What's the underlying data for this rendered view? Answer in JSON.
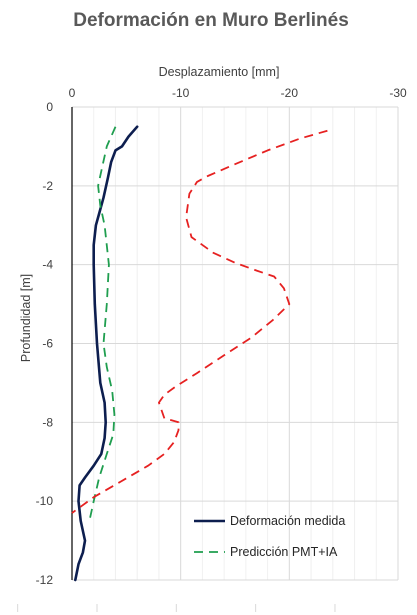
{
  "chart_data": {
    "type": "line",
    "title": "Deformación en Muro Berlinés",
    "xlabel": "Desplazamiento [mm]",
    "ylabel": "Profundidad [m]",
    "xlim": [
      0,
      -30
    ],
    "ylim": [
      0,
      -12
    ],
    "x_axis_position": "top",
    "x_ticks": [
      0,
      -10,
      -20,
      -30
    ],
    "x_tick_labels": [
      "0",
      "-10",
      "-20",
      "-30"
    ],
    "y_ticks": [
      0,
      -2,
      -4,
      -6,
      -8,
      -10,
      -12
    ],
    "y_tick_labels": [
      "0",
      "-2",
      "-4",
      "-6",
      "-8",
      "-10",
      "-12"
    ],
    "grid": true,
    "legend_position": "bottom-right",
    "series": [
      {
        "name": "Deformación medida",
        "color": "#0d1e4f",
        "style": "solid",
        "x": [
          -6,
          -5.2,
          -4.6,
          -4.0,
          -3.6,
          -3.3,
          -2.9,
          -2.5,
          -2.2,
          -2.0,
          -2.0,
          -2.1,
          -2.3,
          -2.6,
          -3.0,
          -3.1,
          -3.0,
          -2.7,
          -2.0,
          -1.2,
          -0.7,
          -0.6,
          -0.8,
          -1.2,
          -1.0,
          -0.6,
          -0.3
        ],
        "y": [
          -0.5,
          -0.75,
          -1.0,
          -1.1,
          -1.4,
          -1.8,
          -2.3,
          -2.7,
          -3.0,
          -3.5,
          -4.0,
          -5.0,
          -6.0,
          -7.0,
          -7.5,
          -8.0,
          -8.4,
          -8.8,
          -9.1,
          -9.4,
          -9.6,
          -10.0,
          -10.5,
          -11.0,
          -11.3,
          -11.6,
          -12.0
        ],
        "line_width": 2.6
      },
      {
        "name": "Predicción PMT+IA",
        "color": "#1f9e4f",
        "style": "dashed",
        "x": [
          -4,
          -3.2,
          -2.8,
          -2.4,
          -2.6,
          -3.0,
          -3.4,
          -3.2,
          -2.9,
          -3.2,
          -3.7,
          -3.9,
          -3.8,
          -3.2,
          -2.5,
          -2.0,
          -1.6
        ],
        "y": [
          -0.5,
          -1.0,
          -1.5,
          -2.0,
          -2.5,
          -3.0,
          -4.0,
          -5.0,
          -6.0,
          -6.6,
          -7.2,
          -7.8,
          -8.3,
          -8.8,
          -9.4,
          -10.0,
          -10.5
        ],
        "line_width": 1.8
      },
      {
        "name": "",
        "color": "#e62121",
        "style": "dashed",
        "x": [
          -23.5,
          -21.0,
          -18.0,
          -15.0,
          -12.5,
          -11.5,
          -10.8,
          -10.5,
          -11.0,
          -13.0,
          -15.0,
          -17.0,
          -18.6,
          -19.5,
          -20.0,
          -18.5,
          -16.5,
          -14.0,
          -11.5,
          -9.5,
          -8.5,
          -8.0,
          -8.5,
          -9.2,
          -9.8,
          -9.8,
          -9.4,
          -8.5,
          -7.0,
          -4.5,
          -2.0,
          0
        ],
        "y": [
          -0.6,
          -0.8,
          -1.1,
          -1.45,
          -1.75,
          -1.9,
          -2.2,
          -2.8,
          -3.3,
          -3.7,
          -3.95,
          -4.15,
          -4.3,
          -4.6,
          -5.0,
          -5.4,
          -5.85,
          -6.3,
          -6.75,
          -7.1,
          -7.3,
          -7.5,
          -7.9,
          -7.95,
          -8.0,
          -8.2,
          -8.5,
          -8.8,
          -9.1,
          -9.5,
          -9.9,
          -10.3
        ],
        "line_width": 1.8
      }
    ]
  }
}
